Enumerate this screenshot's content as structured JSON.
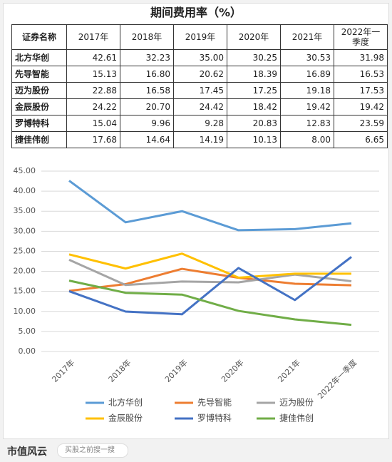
{
  "title": "期间费用率（%）",
  "table": {
    "header": [
      "证券名称",
      "2017年",
      "2018年",
      "2019年",
      "2020年",
      "2021年",
      "2022年一季度"
    ],
    "rows": [
      [
        "北方华创",
        "42.61",
        "32.23",
        "35.00",
        "30.25",
        "30.53",
        "31.98"
      ],
      [
        "先导智能",
        "15.13",
        "16.80",
        "20.62",
        "18.39",
        "16.89",
        "16.53"
      ],
      [
        "迈为股份",
        "22.88",
        "16.58",
        "17.45",
        "17.25",
        "19.18",
        "17.53"
      ],
      [
        "金辰股份",
        "24.22",
        "20.70",
        "24.42",
        "18.42",
        "19.42",
        "19.42"
      ],
      [
        "罗博特科",
        "15.04",
        "9.96",
        "9.28",
        "20.83",
        "12.83",
        "23.59"
      ],
      [
        "捷佳伟创",
        "17.68",
        "14.64",
        "14.19",
        "10.13",
        "8.00",
        "6.65"
      ]
    ]
  },
  "chart_data": {
    "type": "line",
    "categories": [
      "2017年",
      "2018年",
      "2019年",
      "2020年",
      "2021年",
      "2022年一季度"
    ],
    "series": [
      {
        "name": "北方华创",
        "color": "#5b9bd5",
        "values": [
          42.61,
          32.23,
          35.0,
          30.25,
          30.53,
          31.98
        ]
      },
      {
        "name": "先导智能",
        "color": "#ed7d31",
        "values": [
          15.13,
          16.8,
          20.62,
          18.39,
          16.89,
          16.53
        ]
      },
      {
        "name": "迈为股份",
        "color": "#a5a5a5",
        "values": [
          22.88,
          16.58,
          17.45,
          17.25,
          19.18,
          17.53
        ]
      },
      {
        "name": "金辰股份",
        "color": "#ffc000",
        "values": [
          24.22,
          20.7,
          24.42,
          18.42,
          19.42,
          19.42
        ]
      },
      {
        "name": "罗博特科",
        "color": "#4472c4",
        "values": [
          15.04,
          9.96,
          9.28,
          20.83,
          12.83,
          23.59
        ]
      },
      {
        "name": "捷佳伟创",
        "color": "#70ad47",
        "values": [
          17.68,
          14.64,
          14.19,
          10.13,
          8.0,
          6.65
        ]
      }
    ],
    "ylim": [
      0,
      45
    ],
    "yticks": [
      {
        "value": 0,
        "label": "0.00"
      },
      {
        "value": 5,
        "label": "5.00"
      },
      {
        "value": 10,
        "label": "10.00"
      },
      {
        "value": 15,
        "label": "15.00"
      },
      {
        "value": 20,
        "label": "20.00"
      },
      {
        "value": 25,
        "label": "25.00"
      },
      {
        "value": 30,
        "label": "30.00"
      },
      {
        "value": 35,
        "label": "35.00"
      },
      {
        "value": 40,
        "label": "40.00"
      },
      {
        "value": 45,
        "label": "45.00"
      }
    ],
    "grid": true,
    "legend": "bottom"
  },
  "footer": {
    "brand": "市值风云",
    "search": "买股之前搜一搜"
  }
}
